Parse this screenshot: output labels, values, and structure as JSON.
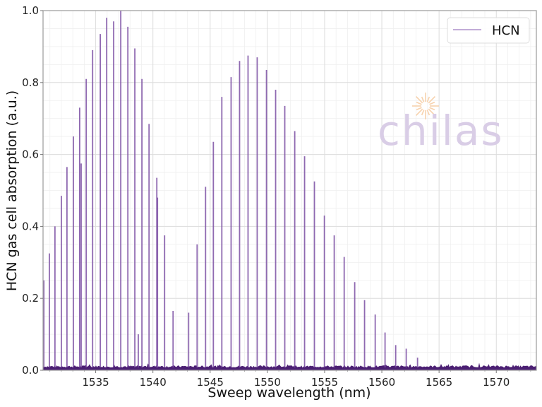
{
  "chart_data": {
    "type": "line",
    "title": "",
    "xlabel": "Sweep wavelength (nm)",
    "ylabel": "HCN gas cell absorption (a.u.)",
    "xlim": [
      1530.4,
      1573.5
    ],
    "ylim": [
      0.0,
      1.0
    ],
    "xticks": [
      1535,
      1540,
      1545,
      1550,
      1555,
      1560,
      1565,
      1570
    ],
    "xtick_labels": [
      "1535",
      "1540",
      "1545",
      "1550",
      "1555",
      "1560",
      "1565",
      "1570"
    ],
    "yticks": [
      0.0,
      0.2,
      0.4,
      0.6,
      0.8,
      1.0
    ],
    "ytick_labels": [
      "0.0",
      "0.2",
      "0.4",
      "0.6",
      "0.8",
      "1.0"
    ],
    "grid": true,
    "minor_grid": true,
    "legend_position": "upper right",
    "noise_floor": 0.01,
    "series": [
      {
        "name": "HCN",
        "color": "#7b4fa3",
        "peaks": [
          {
            "x": 1530.47,
            "y": 0.25
          },
          {
            "x": 1530.95,
            "y": 0.325
          },
          {
            "x": 1531.44,
            "y": 0.4
          },
          {
            "x": 1532.0,
            "y": 0.485
          },
          {
            "x": 1532.49,
            "y": 0.565
          },
          {
            "x": 1533.05,
            "y": 0.65
          },
          {
            "x": 1533.6,
            "y": 0.73
          },
          {
            "x": 1533.73,
            "y": 0.575
          },
          {
            "x": 1534.17,
            "y": 0.81
          },
          {
            "x": 1534.73,
            "y": 0.89
          },
          {
            "x": 1535.4,
            "y": 0.935
          },
          {
            "x": 1535.96,
            "y": 0.98
          },
          {
            "x": 1536.57,
            "y": 0.97
          },
          {
            "x": 1537.19,
            "y": 1.0
          },
          {
            "x": 1537.81,
            "y": 0.955
          },
          {
            "x": 1538.42,
            "y": 0.895
          },
          {
            "x": 1538.72,
            "y": 0.1
          },
          {
            "x": 1539.04,
            "y": 0.81
          },
          {
            "x": 1539.66,
            "y": 0.685
          },
          {
            "x": 1540.34,
            "y": 0.535
          },
          {
            "x": 1540.4,
            "y": 0.48
          },
          {
            "x": 1541.02,
            "y": 0.375
          },
          {
            "x": 1541.76,
            "y": 0.165
          },
          {
            "x": 1543.12,
            "y": 0.16
          },
          {
            "x": 1543.86,
            "y": 0.35
          },
          {
            "x": 1544.6,
            "y": 0.51
          },
          {
            "x": 1545.28,
            "y": 0.635
          },
          {
            "x": 1546.02,
            "y": 0.76
          },
          {
            "x": 1546.83,
            "y": 0.815
          },
          {
            "x": 1547.57,
            "y": 0.86
          },
          {
            "x": 1548.31,
            "y": 0.875
          },
          {
            "x": 1549.11,
            "y": 0.87
          },
          {
            "x": 1549.92,
            "y": 0.835
          },
          {
            "x": 1550.72,
            "y": 0.78
          },
          {
            "x": 1551.52,
            "y": 0.735
          },
          {
            "x": 1552.39,
            "y": 0.665
          },
          {
            "x": 1553.25,
            "y": 0.595
          },
          {
            "x": 1554.11,
            "y": 0.525
          },
          {
            "x": 1554.98,
            "y": 0.43
          },
          {
            "x": 1555.84,
            "y": 0.375
          },
          {
            "x": 1556.71,
            "y": 0.315
          },
          {
            "x": 1557.63,
            "y": 0.245
          },
          {
            "x": 1558.49,
            "y": 0.195
          },
          {
            "x": 1559.42,
            "y": 0.155
          },
          {
            "x": 1560.28,
            "y": 0.105
          },
          {
            "x": 1561.21,
            "y": 0.07
          },
          {
            "x": 1562.13,
            "y": 0.06
          },
          {
            "x": 1563.12,
            "y": 0.035
          }
        ]
      }
    ]
  },
  "legend": {
    "label": "HCN"
  },
  "watermark": {
    "text": "chilas",
    "sun_color": "#f7d2ad",
    "text_color": "#d9cde6"
  },
  "style": {
    "line_color": "#7b4fa3",
    "floor_color": "#4b1f73",
    "grid_major": "#dcdcdc",
    "grid_minor": "#efefef",
    "spine": "#9a9a9a"
  }
}
